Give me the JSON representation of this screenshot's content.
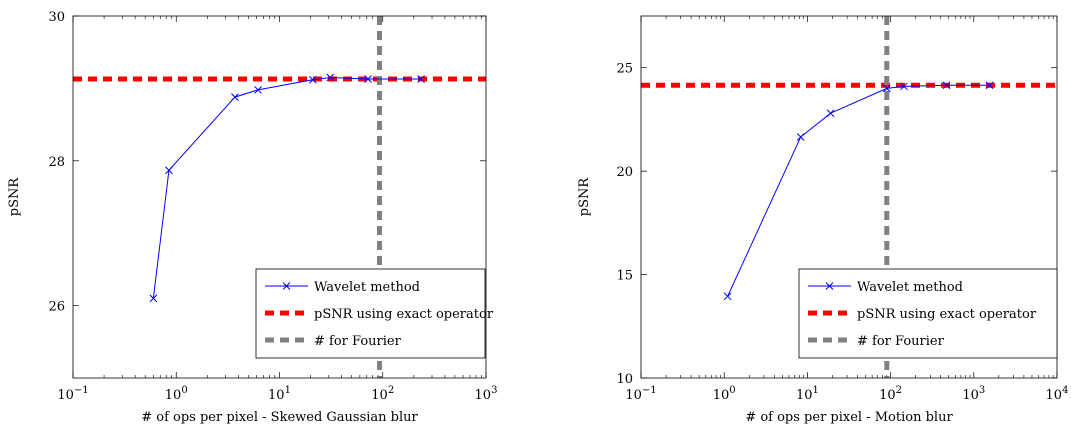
{
  "chart_data": [
    {
      "type": "line",
      "xscale": "log",
      "xlim": [
        0.1,
        1000
      ],
      "ylim": [
        25,
        30
      ],
      "xticks": [
        0.1,
        1,
        10,
        100,
        1000
      ],
      "xtick_labels": [
        "10⁻¹",
        "10⁰",
        "10¹",
        "10²",
        "10³"
      ],
      "yticks": [
        26,
        28,
        30
      ],
      "ytick_labels": [
        "26",
        "28",
        "30"
      ],
      "xlabel": "# of ops per pixel - Skewed Gaussian blur",
      "ylabel": "pSNR",
      "grid": false,
      "legend_position": "bottom-right",
      "series": [
        {
          "name": "Wavelet method",
          "color": "#0000ff",
          "marker": "x",
          "x": [
            0.6,
            0.85,
            3.7,
            6.2,
            21,
            31,
            72,
            235
          ],
          "y": [
            26.1,
            27.87,
            28.88,
            28.98,
            29.12,
            29.15,
            29.13,
            29.13
          ]
        },
        {
          "name": "pSNR using exact operator",
          "color": "#ff0000",
          "style": "dashed-horizontal",
          "y": 29.13
        },
        {
          "name": "# for Fourier",
          "color": "#808080",
          "style": "dashed-vertical",
          "x": 93
        }
      ]
    },
    {
      "type": "line",
      "xscale": "log",
      "xlim": [
        0.1,
        10000
      ],
      "ylim": [
        10,
        27.5
      ],
      "xticks": [
        0.1,
        1,
        10,
        100,
        1000,
        10000
      ],
      "xtick_labels": [
        "10⁻¹",
        "10⁰",
        "10¹",
        "10²",
        "10³",
        "10⁴"
      ],
      "yticks": [
        10,
        15,
        20,
        25
      ],
      "ytick_labels": [
        "10",
        "15",
        "20",
        "25"
      ],
      "xlabel": "# of ops per pixel - Motion blur",
      "ylabel": "pSNR",
      "grid": false,
      "legend_position": "bottom-right",
      "series": [
        {
          "name": "Wavelet method",
          "color": "#0000ff",
          "marker": "x",
          "x": [
            1.1,
            8.3,
            19,
            90,
            145,
            470,
            1550
          ],
          "y": [
            13.95,
            21.65,
            22.8,
            24.0,
            24.1,
            24.15,
            24.15
          ]
        },
        {
          "name": "pSNR using exact operator",
          "color": "#ff0000",
          "style": "dashed-horizontal",
          "y": 24.15
        },
        {
          "name": "# for Fourier",
          "color": "#808080",
          "style": "dashed-vertical",
          "x": 90
        }
      ]
    }
  ]
}
